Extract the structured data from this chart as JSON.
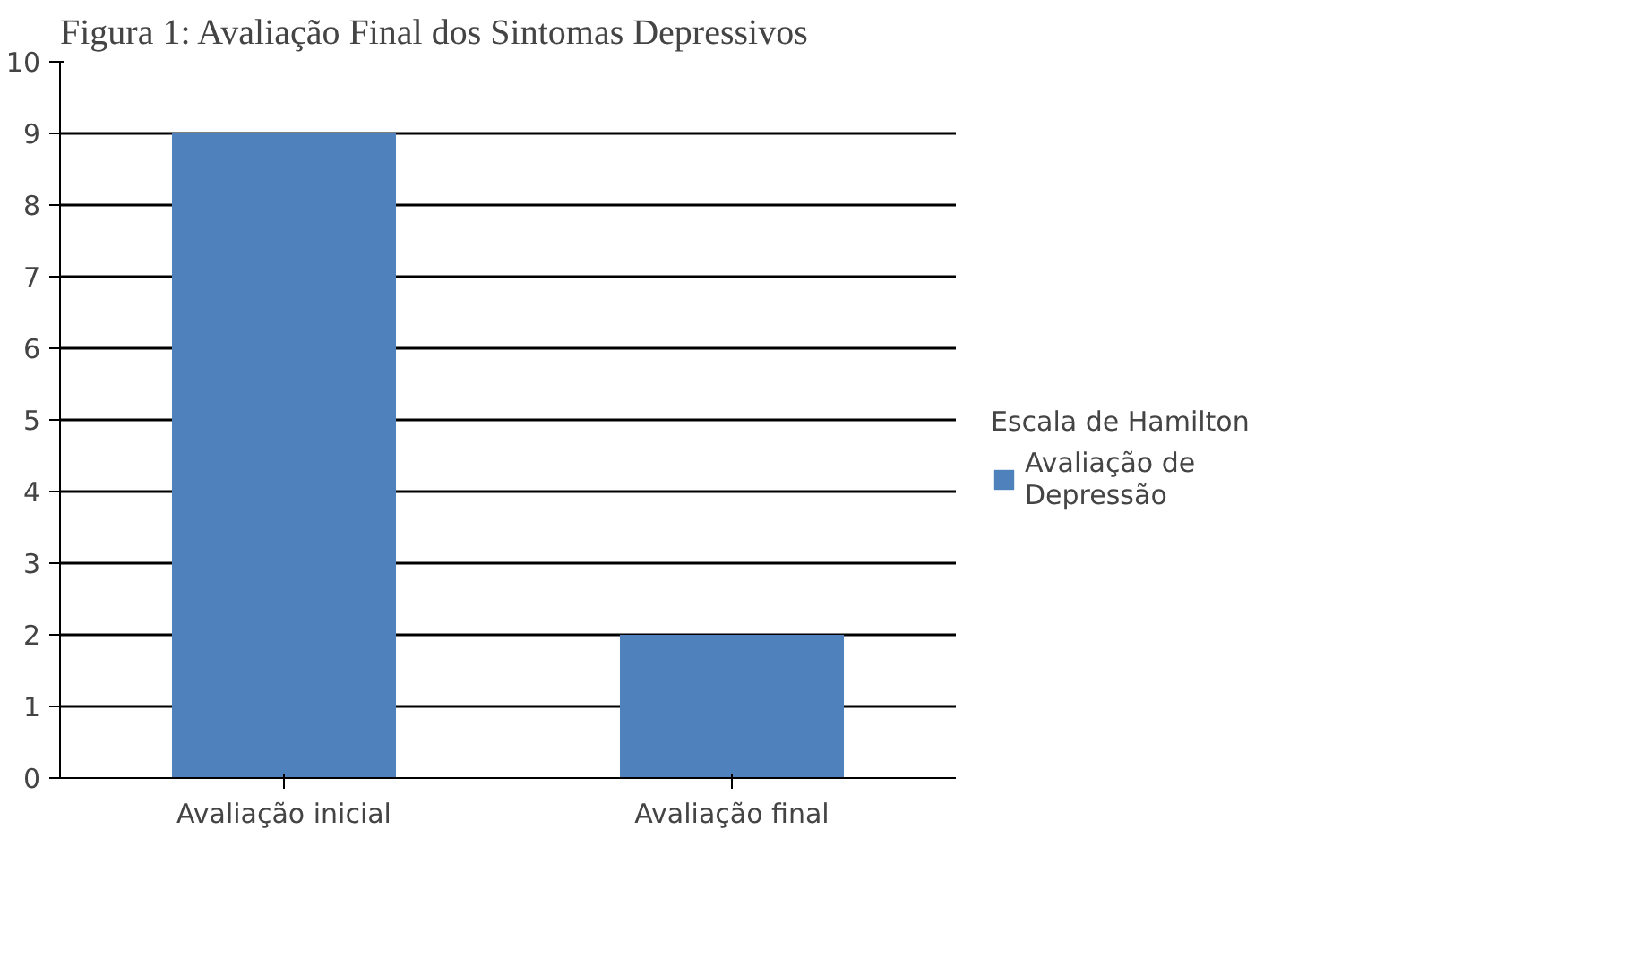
{
  "chart_data": {
    "type": "bar",
    "title": "Figura 1: Avaliação Final dos Sintomas Depressivos",
    "categories": [
      "Avaliação inicial",
      "Avaliação final"
    ],
    "legend_title": "Escala de Hamilton",
    "series": [
      {
        "name": "Avaliação de Depressão",
        "color": "#4f81bd",
        "values": [
          9,
          2
        ]
      }
    ],
    "ylim": [
      0,
      10
    ],
    "yticks": [
      0,
      1,
      2,
      3,
      4,
      5,
      6,
      7,
      8,
      9,
      10
    ],
    "grid": "y",
    "legend": "right"
  }
}
